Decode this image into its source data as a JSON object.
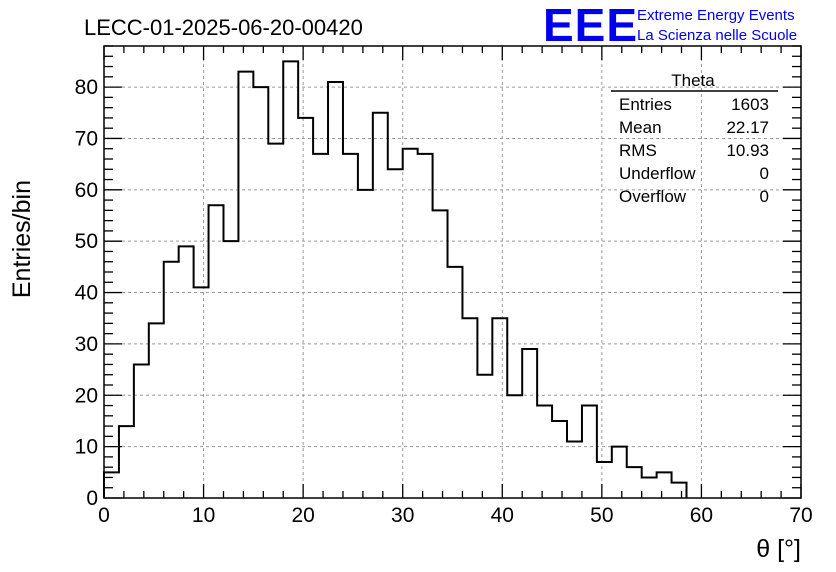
{
  "chart_data": {
    "type": "bar",
    "title": "LECC-01-2025-06-20-00420",
    "xlabel": "θ [°]",
    "ylabel": "Entries/bin",
    "xlim": [
      0,
      70
    ],
    "ylim": [
      0,
      88
    ],
    "bin_width": 1.5,
    "x_ticks": [
      0,
      10,
      20,
      30,
      40,
      50,
      60,
      70
    ],
    "y_ticks": [
      0,
      10,
      20,
      30,
      40,
      50,
      60,
      70,
      80
    ],
    "grid": true,
    "bins": [
      {
        "x": 0.0,
        "value": 5
      },
      {
        "x": 1.5,
        "value": 14
      },
      {
        "x": 3.0,
        "value": 26
      },
      {
        "x": 4.5,
        "value": 34
      },
      {
        "x": 6.0,
        "value": 46
      },
      {
        "x": 7.5,
        "value": 49
      },
      {
        "x": 9.0,
        "value": 41
      },
      {
        "x": 10.5,
        "value": 57
      },
      {
        "x": 12.0,
        "value": 50
      },
      {
        "x": 13.5,
        "value": 83
      },
      {
        "x": 15.0,
        "value": 80
      },
      {
        "x": 16.5,
        "value": 69
      },
      {
        "x": 18.0,
        "value": 85
      },
      {
        "x": 19.5,
        "value": 74
      },
      {
        "x": 21.0,
        "value": 67
      },
      {
        "x": 22.5,
        "value": 81
      },
      {
        "x": 24.0,
        "value": 67
      },
      {
        "x": 25.5,
        "value": 60
      },
      {
        "x": 27.0,
        "value": 75
      },
      {
        "x": 28.5,
        "value": 64
      },
      {
        "x": 30.0,
        "value": 68
      },
      {
        "x": 31.5,
        "value": 67
      },
      {
        "x": 33.0,
        "value": 56
      },
      {
        "x": 34.5,
        "value": 45
      },
      {
        "x": 36.0,
        "value": 35
      },
      {
        "x": 37.5,
        "value": 24
      },
      {
        "x": 39.0,
        "value": 35
      },
      {
        "x": 40.5,
        "value": 20
      },
      {
        "x": 42.0,
        "value": 29
      },
      {
        "x": 43.5,
        "value": 18
      },
      {
        "x": 45.0,
        "value": 15
      },
      {
        "x": 46.5,
        "value": 11
      },
      {
        "x": 48.0,
        "value": 18
      },
      {
        "x": 49.5,
        "value": 7
      },
      {
        "x": 51.0,
        "value": 10
      },
      {
        "x": 52.5,
        "value": 6
      },
      {
        "x": 54.0,
        "value": 4
      },
      {
        "x": 55.5,
        "value": 5
      },
      {
        "x": 57.0,
        "value": 3
      }
    ],
    "stats_box": {
      "name": "Theta",
      "rows": [
        {
          "label": "Entries",
          "value": "1603"
        },
        {
          "label": "Mean",
          "value": "22.17"
        },
        {
          "label": "RMS",
          "value": "10.93"
        },
        {
          "label": "Underflow",
          "value": "0"
        },
        {
          "label": "Overflow",
          "value": "0"
        }
      ]
    }
  },
  "logo": {
    "mark": "EEE",
    "line1": "Extreme Energy Events",
    "line2": "La Scienza nelle Scuole",
    "color": "#0000ee"
  },
  "colors": {
    "line": "#000000",
    "grid": "#9a9a9a"
  }
}
